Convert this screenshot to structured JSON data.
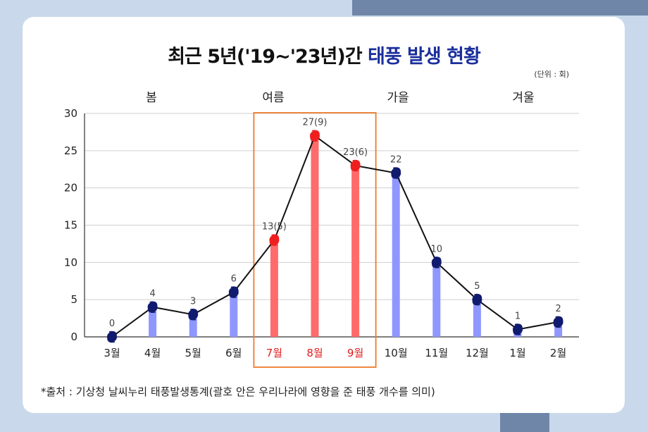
{
  "title": {
    "prefix": "최근 5년('19~'23년)간",
    "accent": "태풍 발생 현황"
  },
  "unit": "(단위 : 회)",
  "source": "*출처 : 기상청 날씨누리 태풍발생통계(괄호 안은 우리나라에 영향을 준 태풍 개수를 의미)",
  "seasons": [
    {
      "label": "봄",
      "month_index": 1
    },
    {
      "label": "여름",
      "month_index": 4
    },
    {
      "label": "가을",
      "month_index": 7
    },
    {
      "label": "겨울",
      "month_index": 10
    }
  ],
  "colors": {
    "bar_normal": "#8f97ff",
    "bar_highlight": "#ff6b6b",
    "dot_normal": "#101a6e",
    "dot_highlight": "#ef1f1f",
    "label_highlight": "#e01b1b",
    "highlight_box": "#ef7b2e",
    "title_accent": "#1b2f9c"
  },
  "chart_data": {
    "type": "bar",
    "categories": [
      "3월",
      "4월",
      "5월",
      "6월",
      "7월",
      "8월",
      "9월",
      "10월",
      "11월",
      "12월",
      "1월",
      "2월"
    ],
    "values": [
      0,
      4,
      3,
      6,
      13,
      27,
      23,
      22,
      10,
      5,
      1,
      2
    ],
    "data_labels": [
      "0",
      "4",
      "3",
      "6",
      "13(5)",
      "27(9)",
      "23(6)",
      "22",
      "10",
      "5",
      "1",
      "2"
    ],
    "korea_impact": [
      null,
      null,
      null,
      null,
      5,
      9,
      6,
      null,
      null,
      null,
      null,
      null
    ],
    "highlighted": [
      4,
      5,
      6
    ],
    "ylim": [
      0,
      30
    ],
    "yticks": [
      0,
      5,
      10,
      15,
      20,
      25,
      30
    ],
    "grid": true,
    "overlay": "line",
    "xlabel": "",
    "ylabel": ""
  }
}
